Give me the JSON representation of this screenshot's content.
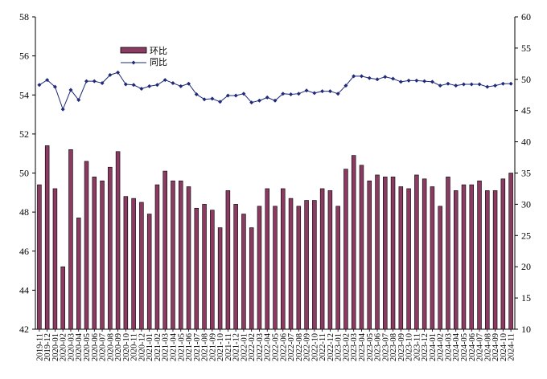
{
  "chart_data": {
    "type": "bar",
    "categories": [
      "2019-11",
      "2019-12",
      "2020-01",
      "2020-02",
      "2020-03",
      "2020-04",
      "2020-05",
      "2020-06",
      "2020-07",
      "2020-08",
      "2020-09",
      "2020-10",
      "2020-11",
      "2020-12",
      "2021-01",
      "2021-02",
      "2021-03",
      "2021-04",
      "2021-05",
      "2021-06",
      "2021-07",
      "2021-08",
      "2021-09",
      "2021-10",
      "2021-11",
      "2021-12",
      "2022-01",
      "2022-02",
      "2022-03",
      "2022-04",
      "2022-05",
      "2022-06",
      "2022-07",
      "2022-08",
      "2022-09",
      "2022-10",
      "2022-11",
      "2022-12",
      "2023-01",
      "2023-02",
      "2023-03",
      "2023-04",
      "2023-05",
      "2023-06",
      "2023-07",
      "2023-08",
      "2023-09",
      "2023-10",
      "2023-11",
      "2023-12",
      "2024-01",
      "2024-02",
      "2024-03",
      "2024-04",
      "2024-05",
      "2024-06",
      "2024-07",
      "2024-08",
      "2024-09",
      "2024-10",
      "2024-11"
    ],
    "series": [
      {
        "name": "环比",
        "type": "bar",
        "axis": "left",
        "color": "#8B3A62",
        "values": [
          49.4,
          51.4,
          49.2,
          45.2,
          51.2,
          47.7,
          50.6,
          49.8,
          49.6,
          50.3,
          51.1,
          48.8,
          48.7,
          48.5,
          47.9,
          49.4,
          50.1,
          49.6,
          49.6,
          49.3,
          48.2,
          48.4,
          48.1,
          47.2,
          49.1,
          48.4,
          47.9,
          47.2,
          48.3,
          49.2,
          48.3,
          49.2,
          48.7,
          48.3,
          48.6,
          48.6,
          49.2,
          49.1,
          48.3,
          50.2,
          50.9,
          50.4,
          49.6,
          49.9,
          49.8,
          49.8,
          49.3,
          49.2,
          49.9,
          49.7,
          49.3,
          48.3,
          49.8,
          49.1,
          49.4,
          49.4,
          49.6,
          49.1,
          49.1,
          49.7,
          50.0
        ]
      },
      {
        "name": "同比",
        "type": "line",
        "axis": "right",
        "color": "#1F2A78",
        "values": [
          49.1,
          49.9,
          48.8,
          45.2,
          48.3,
          46.7,
          49.7,
          49.7,
          49.4,
          50.7,
          51.1,
          49.2,
          49.1,
          48.5,
          48.9,
          49.1,
          49.9,
          49.4,
          48.9,
          49.3,
          47.6,
          46.8,
          46.9,
          46.4,
          47.4,
          47.4,
          47.7,
          46.3,
          46.6,
          47.1,
          46.6,
          47.7,
          47.6,
          47.7,
          48.2,
          47.8,
          48.1,
          48.1,
          47.7,
          49.0,
          50.5,
          50.5,
          50.2,
          50.0,
          50.4,
          50.1,
          49.6,
          49.8,
          49.8,
          49.7,
          49.6,
          49.0,
          49.3,
          49.0,
          49.2,
          49.2,
          49.2,
          48.8,
          49.0,
          49.3,
          49.3
        ]
      }
    ],
    "y_left": {
      "min": 42,
      "max": 58,
      "step": 2,
      "ticks": [
        "42",
        "44",
        "46",
        "48",
        "50",
        "52",
        "54",
        "56",
        "58"
      ]
    },
    "y_right": {
      "min": 10,
      "max": 60,
      "step": 5,
      "ticks": [
        "10",
        "15",
        "20",
        "25",
        "30",
        "35",
        "40",
        "45",
        "50",
        "55",
        "60"
      ]
    },
    "x_tick_labels": [
      "2019-11",
      "2019-12",
      "2020-01",
      "2020-02",
      "2020-03",
      "2020-04",
      "2020-05",
      "2020-06",
      "2020-07",
      "2020-08",
      "2020-09",
      "2020-10",
      "2020-11",
      "2020-12",
      "2021-01",
      "2021-02",
      "2021-03",
      "2021-04",
      "2021-05",
      "2021-06",
      "2021-07",
      "2021-08",
      "2021-09",
      "2021-10",
      "2021-11",
      "2021-12",
      "2022-01",
      "2022-02",
      "2022-03",
      "2022-04",
      "2022-05",
      "2022-06",
      "2022-07",
      "2022-08",
      "2022-09",
      "2022-10",
      "2022-11",
      "2022-12",
      "2023-01",
      "2023-02",
      "2023-03",
      "2023-04",
      "2023-05",
      "2023-06",
      "2023-07",
      "2023-08",
      "2023-09",
      "2023-10",
      "2023-11",
      "2023-12",
      "2024-01",
      "2024-02",
      "2024-03",
      "2024-04",
      "2024-05",
      "2024-06",
      "2024-07",
      "2024-08",
      "2024-09",
      "2024-10",
      "2024-11"
    ],
    "x_tick_display": [
      "2019-11",
      "2019-12",
      "2020-01",
      "2020-02",
      "2020-03",
      "2020-04",
      "2020-05",
      "2020-06",
      "2020-07",
      "2020-08",
      "2020-09",
      "2020-10",
      "2020-11",
      "2020-12",
      "2021-01",
      "2021-02",
      "2021-03",
      "2021-04",
      "2021-05",
      "2021-06",
      "2021-07",
      "2021-08",
      "2021-09",
      "2021-10",
      "2021-11",
      "2021-12",
      "2022-01",
      "2022-02",
      "2022-03",
      "2022-04",
      "2022-05",
      "2022-06",
      "2022-07",
      "2022-08",
      "2022-09",
      "2022-10",
      "2022-11",
      "2022-12",
      "2023-01",
      "2023-02",
      "2023-03",
      "2023-04",
      "2023-05",
      "2023-06",
      "2023-07",
      "2023-08",
      "2023-09",
      "2023-10",
      "2023-11",
      "2023-12",
      "2024-01",
      "2024-02",
      "2024-03",
      "2024-04",
      "2024-05",
      "2024-06",
      "2024-07",
      "2024-08",
      "2024-09",
      "2024-10",
      "2024-11"
    ],
    "legend": {
      "position": "top-left",
      "items": [
        "环比",
        "同比"
      ]
    },
    "grid": false,
    "title": "",
    "xlabel": "",
    "ylabel_left": "",
    "ylabel_right": ""
  }
}
